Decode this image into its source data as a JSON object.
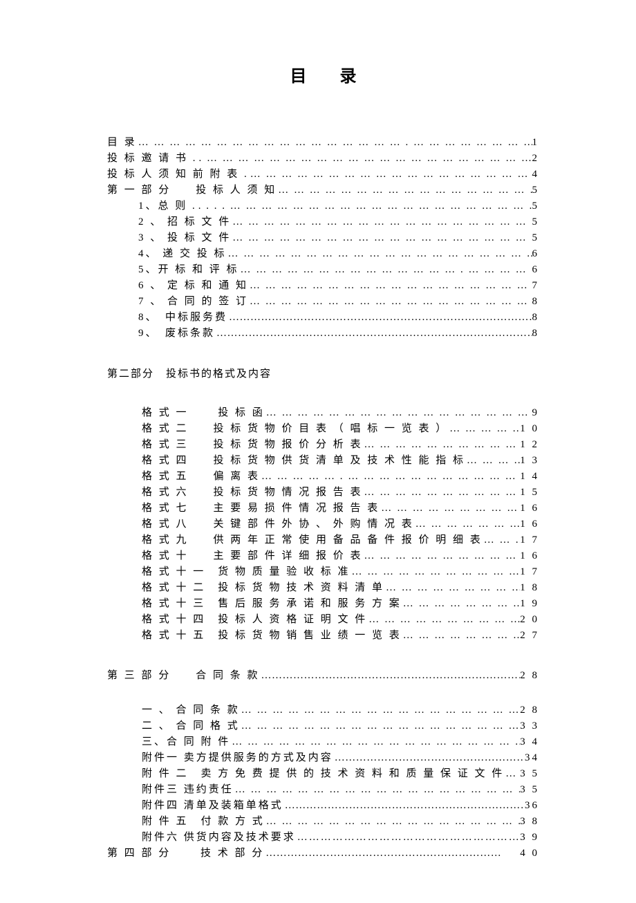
{
  "title": "目录",
  "leader_wide": "… … … … … … … … … … … … … … … … … . … … … … … … … …",
  "leader_dots": "…………………………………………………………………………………",
  "entries_top": [
    {
      "label": "目 录",
      "page": "1",
      "indent": 0,
      "leader": "… … … … … … … … … … … … … … … … … . … … … … … … … …"
    },
    {
      "label": "投 标 邀 请 书 .",
      "page": "2",
      "indent": 0,
      "leader": ". … … … … … … … … … … … … … … … … … … … … … … …"
    },
    {
      "label": "投 标 人 须 知 前 附 表 .",
      "page": "4",
      "indent": 0,
      "leader": "… … … … … … … … … … … … … … … … … … … … …"
    },
    {
      "label": "第 一 部 分　　投 标 人 须 知",
      "page": "5",
      "indent": 0,
      "leader": "… … … … … … … … … … … … … … … … … … …"
    },
    {
      "label": "1、总 则 .",
      "page": "5",
      "indent": 1,
      "leader": ". . . . … … … … … … … … … … … … … … … … … … … …"
    },
    {
      "label": "2 、 招 标 文 件",
      "page": "5",
      "indent": 1,
      "leader": "… … … … … … … … … … … … … … … … … … … … …"
    },
    {
      "label": "3 、 投 标 文 件",
      "page": "5",
      "indent": 1,
      "leader": "… … … … … … … … … … … … … … … … … … … … …"
    },
    {
      "label": "4、 递 交 投 标",
      "page": "6",
      "indent": 1,
      "leader": "… … … … … … … … … … … … … … … … … … … … …"
    },
    {
      "label": "5、开 标 和 评 标",
      "page": "6",
      "indent": 1,
      "leader": "… … … … … … … … … … … … … … . … … … … … …"
    },
    {
      "label": "6 、 定 标 和 通 知",
      "page": "7",
      "indent": 1,
      "leader": "… … … … … … … … … … … … … … … … … … … …"
    },
    {
      "label": "7 、 合 同 的 签 订",
      "page": "8",
      "indent": 1,
      "leader": "… … … … … … … … … … … … … … … … … … … …"
    },
    {
      "label": "8、　中标服务费",
      "page": "8",
      "indent": 1,
      "leader": "tight"
    },
    {
      "label": "9、　废标条款",
      "page": "8",
      "indent": 1,
      "leader": "tight"
    }
  ],
  "section2_header": "第二部分　投标书的格式及内容",
  "entries_section2": [
    {
      "label": "格 式 一　　 投 标 函",
      "page": "9",
      "leader": "… … … … … … … … … … … … … … … … … …"
    },
    {
      "label": "格 式 二　　投 标 货 物 价 目 表 （ 唱 标 一 览 表 ）",
      "page": "1 0",
      "leader": "… … … … … … … …"
    },
    {
      "label": "格 式 三　　投 标 货 物 报 价 分 析 表",
      "page": "1 2",
      "leader": "… … … … … … … … … … … … …"
    },
    {
      "label": "格 式 四　　投 标 货 物 供 货 清 单 及 技 术 性 能 指 标",
      "page": "1 3",
      "leader": "… … … … … … …"
    },
    {
      "label": "格 式 五　　偏 离 表",
      "page": "1 4",
      "leader": "… … … … … . … … … … … … … … … … … … …"
    },
    {
      "label": "格 式 六　　投 标 货 物 情 况 报 告 表",
      "page": "1 5",
      "leader": "… … … … … … … … … … … … …"
    },
    {
      "label": "格 式 七　　主 要 易 损 件 情 况 报 告 表",
      "page": "1 6",
      "leader": "… … … … … … … … … … … …"
    },
    {
      "label": "格 式 八　　关 键 部 件 外 协 、 外 购 情 况 表",
      "page": "1 6",
      "leader": "… … … … … … … … … …"
    },
    {
      "label": "格 式 九　　供 两 年 正 常 使 用 备 品 备 件 报 价 明 细 表",
      "page": "1 7",
      "leader": "… … … … … …"
    },
    {
      "label": "格 式 十　　主 要 部 件 详 细 报 价 表",
      "page": "1 6",
      "leader": "… … … … … … … … … … … … …"
    },
    {
      "label": "格 式 十 一　货 物 质 量 验 收 标 准",
      "page": "1 7",
      "leader": "… … … … … … … … … … … … … …"
    },
    {
      "label": "格 式 十 二　投 标 货 物 技 术 资 料 清 单",
      "page": "1 8",
      "leader": "… … … … … … … … … … … …"
    },
    {
      "label": "格 式 十 三　售 后 服 务 承 诺 和 服 务 方 案",
      "page": "1 9",
      "leader": "… … … … … … … … … … …"
    },
    {
      "label": "格 式 十 四　投 标 人 资 格 证 明 文 件",
      "page": "2 0",
      "leader": "… … … … … … … … … … … … …"
    },
    {
      "label": "格 式 十 五　投 标 货 物 销 售 业 绩 一 览 表",
      "page": "2 7",
      "leader": "… … … … … … … … … … …"
    }
  ],
  "section3_line": {
    "label": "第 三 部 分　　合 同 条 款",
    "page": "2 8",
    "leader": "…………………………………………………………………"
  },
  "entries_section3": [
    {
      "label": "一 、 合 同 条 款",
      "page": "2 8",
      "leader": "… … … … … … … … … … … … … … … … … … … …"
    },
    {
      "label": "二 、 合 同 格 式",
      "page": "3 3",
      "leader": "… … … … … … … … … … … … … … … … … … … …"
    },
    {
      "label": "三、合 同 附 件",
      "page": "3 4",
      "leader": "… … … … … … … … … … … … … … … … … … … …"
    },
    {
      "label": "附件一  卖方提供服务的方式及内容",
      "page": "34",
      "leader": "tight"
    },
    {
      "label": "附 件 二　卖 方 免 费 提 供 的 技 术 资 料 和 质 量 保 证 文 件",
      "page": "3 5",
      "leader": "… … … … … … …"
    },
    {
      "label": "附件三  违约责任",
      "page": "3 5",
      "leader": "… … … … … … … … … … … … … … … … … … … … … …"
    },
    {
      "label": "附件四  清单及装箱单格式",
      "page": "36",
      "leader": "tight2"
    },
    {
      "label": "附 件 五　付 款 方 式",
      "page": "3 8",
      "leader": "… … … … … … … … … … … … … … … … … … … …"
    },
    {
      "label": "附件六  供货内容及技术要求",
      "page": "3 9",
      "leader": "…………………………………………………"
    }
  ],
  "section4_line": {
    "label": "第 四 部 分　　  技 术 部 分",
    "page": "4 0",
    "leader": "…………………………………………………………"
  }
}
